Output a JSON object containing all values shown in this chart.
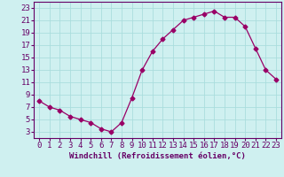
{
  "x": [
    0,
    1,
    2,
    3,
    4,
    5,
    6,
    7,
    8,
    9,
    10,
    11,
    12,
    13,
    14,
    15,
    16,
    17,
    18,
    19,
    20,
    21,
    22,
    23
  ],
  "y": [
    8,
    7,
    6.5,
    5.5,
    5,
    4.5,
    3.5,
    3,
    4.5,
    8.5,
    13,
    16,
    18,
    19.5,
    21,
    21.5,
    22,
    22.5,
    21.5,
    21.5,
    20,
    16.5,
    13,
    11.5
  ],
  "line_color": "#990066",
  "marker": "D",
  "marker_size": 2.5,
  "bg_color": "#cff0f0",
  "grid_color": "#aadddd",
  "xlabel": "Windchill (Refroidissement éolien,°C)",
  "xlabel_color": "#660066",
  "tick_color": "#660066",
  "ylim": [
    2,
    24
  ],
  "xlim": [
    -0.5,
    23.5
  ],
  "yticks": [
    3,
    5,
    7,
    9,
    11,
    13,
    15,
    17,
    19,
    21,
    23
  ],
  "xticks": [
    0,
    1,
    2,
    3,
    4,
    5,
    6,
    7,
    8,
    9,
    10,
    11,
    12,
    13,
    14,
    15,
    16,
    17,
    18,
    19,
    20,
    21,
    22,
    23
  ],
  "font_family": "monospace",
  "font_size": 6.5,
  "xlabel_fontsize": 6.5
}
